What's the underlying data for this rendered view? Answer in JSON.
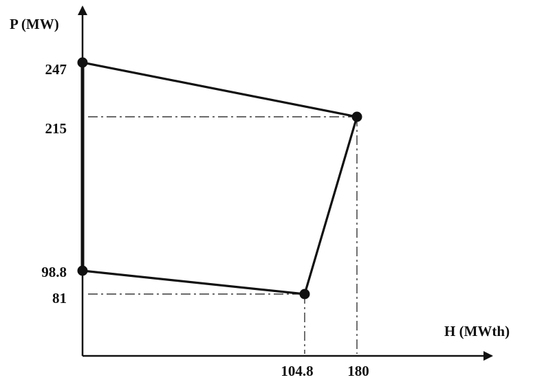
{
  "chart_data": {
    "type": "line",
    "title": "",
    "xlabel": "H (MWth)",
    "ylabel": "P (MW)",
    "series": [
      {
        "points": [
          {
            "x": 0,
            "y": 247
          },
          {
            "x": 180,
            "y": 215
          },
          {
            "x": 104.8,
            "y": 81
          },
          {
            "x": 0,
            "y": 98.8
          },
          {
            "x": 0,
            "y": 247
          }
        ]
      }
    ],
    "x_ticks": [
      "104.8",
      "180"
    ],
    "y_ticks": [
      "247",
      "215",
      "98.8",
      "81"
    ],
    "grid": false,
    "legend": "none"
  }
}
